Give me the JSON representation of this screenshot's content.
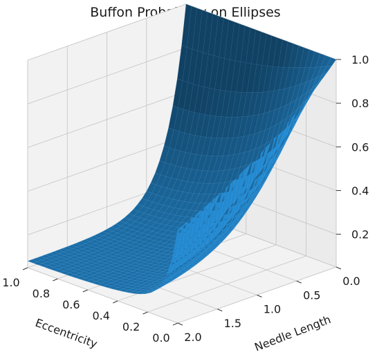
{
  "chart_data": {
    "type": "surface",
    "title": "Buffon Probability on Ellipses",
    "xlabel": "Eccentricity",
    "ylabel": "Needle Length",
    "zlabel": "",
    "x_ticks": [
      "0.0",
      "0.2",
      "0.4",
      "0.6",
      "0.8",
      "1.0"
    ],
    "y_ticks": [
      "0.0",
      "0.5",
      "1.0",
      "1.5",
      "2.0"
    ],
    "z_ticks": [
      "0.2",
      "0.4",
      "0.6",
      "0.8",
      "1.0"
    ],
    "xlim": [
      0,
      1
    ],
    "ylim": [
      0,
      2
    ],
    "zlim": [
      0.05,
      1.0
    ],
    "grid": true,
    "surface_color": "#1f77b4",
    "description_points": [
      {
        "eccentricity": 0.0,
        "needle_length": 0.0,
        "probability": 1.0
      },
      {
        "eccentricity": 1.0,
        "needle_length": 0.0,
        "probability": 1.0
      },
      {
        "eccentricity": 1.0,
        "needle_length": 2.0,
        "probability": 0.08
      },
      {
        "eccentricity": 0.0,
        "needle_length": 2.0,
        "probability": 0.12
      }
    ]
  }
}
